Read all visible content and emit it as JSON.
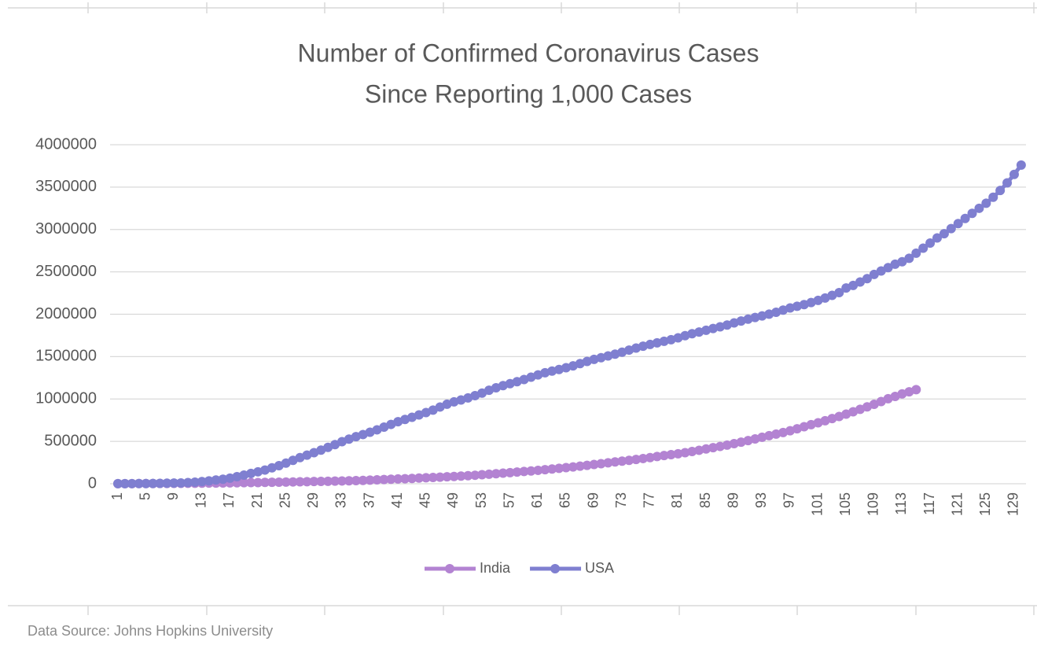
{
  "chart_data": {
    "type": "line",
    "title": [
      "Number of Confirmed Coronavirus Cases",
      "Since Reporting 1,000 Cases"
    ],
    "source": "Data Source: Johns Hopkins University",
    "categories": [
      1,
      null,
      null,
      null,
      5,
      null,
      null,
      null,
      9,
      null,
      null,
      null,
      13,
      null,
      null,
      null,
      17,
      null,
      null,
      null,
      21,
      null,
      null,
      null,
      25,
      null,
      null,
      null,
      29,
      null,
      null,
      null,
      33,
      null,
      null,
      null,
      37,
      null,
      null,
      null,
      41,
      null,
      null,
      null,
      45,
      null,
      null,
      null,
      49,
      null,
      null,
      null,
      53,
      null,
      null,
      null,
      57,
      null,
      null,
      null,
      61,
      null,
      null,
      null,
      65,
      null,
      null,
      null,
      69,
      null,
      null,
      null,
      73,
      null,
      null,
      null,
      77,
      null,
      null,
      null,
      81,
      null,
      null,
      null,
      85,
      null,
      null,
      null,
      89,
      null,
      null,
      null,
      93,
      null,
      null,
      null,
      97,
      null,
      null,
      null,
      101,
      null,
      null,
      null,
      105,
      null,
      null,
      null,
      109,
      null,
      null,
      null,
      113,
      null,
      null,
      null,
      117,
      null,
      null,
      null,
      121,
      null,
      null,
      null,
      125,
      null,
      null,
      null,
      129,
      null
    ],
    "series": [
      {
        "name": "India",
        "color": "#b383d2",
        "values": [
          1000,
          1250,
          1400,
          1850,
          2100,
          2500,
          3100,
          3600,
          4300,
          4800,
          5400,
          5900,
          6700,
          7600,
          8400,
          9200,
          10400,
          11500,
          12400,
          13400,
          14400,
          15700,
          17300,
          18500,
          20100,
          21400,
          23000,
          24500,
          26300,
          27900,
          29500,
          31300,
          33000,
          34900,
          37300,
          39700,
          42500,
          46400,
          49400,
          52900,
          56300,
          59600,
          62800,
          67100,
          70700,
          74200,
          78000,
          81900,
          85900,
          90600,
          95600,
          100300,
          106500,
          112000,
          118200,
          124800,
          131400,
          138500,
          144900,
          150800,
          158300,
          165800,
          173500,
          182100,
          190500,
          198700,
          207200,
          216900,
          226800,
          236700,
          246600,
          257500,
          266600,
          276600,
          286600,
          297500,
          308900,
          320900,
          332400,
          343000,
          354100,
          366900,
          380500,
          395000,
          410500,
          425300,
          440200,
          456200,
          473100,
          490400,
          508900,
          528900,
          548300,
          566800,
          585500,
          604600,
          625500,
          648300,
          673200,
          697400,
          719700,
          743500,
          769000,
          794000,
          820900,
          849500,
          878300,
          906800,
          937500,
          970200,
          1003800,
          1030000,
          1060000,
          1085000,
          1110000,
          null,
          null,
          null,
          null,
          null,
          null,
          null,
          null,
          null,
          null,
          null,
          null,
          null,
          null,
          null
        ]
      },
      {
        "name": "USA",
        "color": "#7f7fd0",
        "values": [
          1000,
          1300,
          1700,
          2200,
          2700,
          3500,
          4600,
          6400,
          7700,
          9400,
          13700,
          19100,
          25500,
          33300,
          43800,
          53700,
          65800,
          83800,
          101700,
          121500,
          140900,
          161800,
          188200,
          213400,
          243800,
          275600,
          308800,
          337100,
          366600,
          396200,
          429000,
          461400,
          496500,
          526400,
          555300,
          580600,
          607700,
          636300,
          667800,
          700100,
          732200,
          759000,
          784300,
          811900,
          840400,
          869200,
          905400,
          938100,
          965800,
          988200,
          1012600,
          1039900,
          1069400,
          1103500,
          1132500,
          1158000,
          1180600,
          1204400,
          1229300,
          1257000,
          1283900,
          1309500,
          1329300,
          1347900,
          1369400,
          1390400,
          1417900,
          1443400,
          1467800,
          1486800,
          1508300,
          1528600,
          1551900,
          1577100,
          1601400,
          1622600,
          1643300,
          1662800,
          1681400,
          1699900,
          1721800,
          1747100,
          1770200,
          1790200,
          1811000,
          1831800,
          1851500,
          1872700,
          1897400,
          1920100,
          1942400,
          1961800,
          1979800,
          2000700,
          2023400,
          2048900,
          2074500,
          2094100,
          2114000,
          2137700,
          2163300,
          2191100,
          2222600,
          2255100,
          2310000,
          2340000,
          2380000,
          2420000,
          2470000,
          2510000,
          2550000,
          2590000,
          2620000,
          2660000,
          2720000,
          2780000,
          2840000,
          2900000,
          2950000,
          3010000,
          3070000,
          3130000,
          3190000,
          3250000,
          3310000,
          3380000,
          3460000,
          3550000,
          3650000,
          3760000
        ]
      }
    ],
    "ylim": [
      0,
      4000000
    ],
    "yticks": [
      0,
      500000,
      1000000,
      1500000,
      2000000,
      2500000,
      3000000,
      3500000,
      4000000
    ],
    "grid": true,
    "legend": "bottom"
  }
}
